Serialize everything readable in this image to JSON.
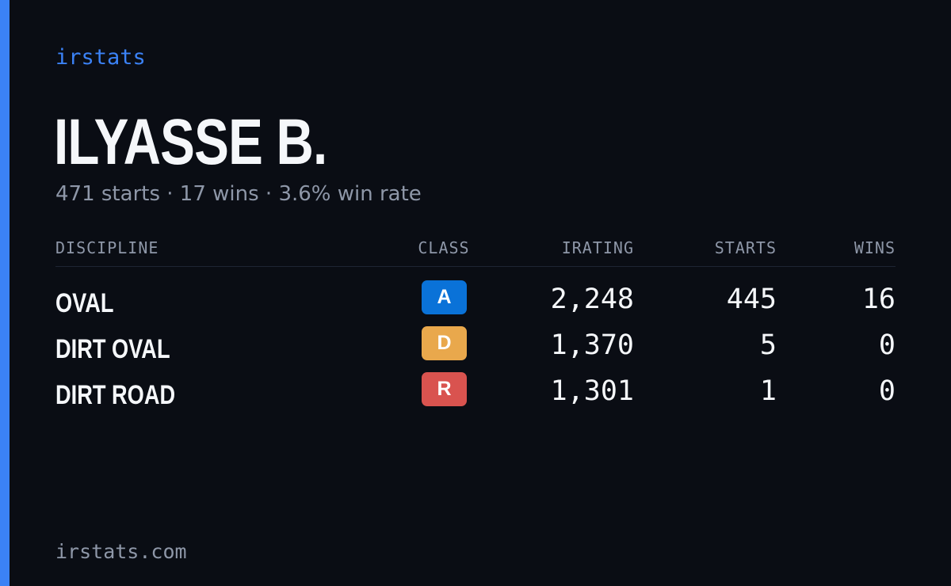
{
  "brand": "irstats",
  "driver": {
    "name": "ILYASSE B.",
    "summary": "471 starts · 17 wins · 3.6% win rate"
  },
  "table": {
    "headers": {
      "discipline": "DISCIPLINE",
      "class": "CLASS",
      "irating": "IRATING",
      "starts": "STARTS",
      "wins": "WINS"
    },
    "rows": [
      {
        "discipline": "OVAL",
        "class": "A",
        "class_color": "#0a72d8",
        "irating": "2,248",
        "starts": "445",
        "wins": "16"
      },
      {
        "discipline": "DIRT OVAL",
        "class": "D",
        "class_color": "#e9a84c",
        "irating": "1,370",
        "starts": "5",
        "wins": "0"
      },
      {
        "discipline": "DIRT ROAD",
        "class": "R",
        "class_color": "#d9534f",
        "irating": "1,301",
        "starts": "1",
        "wins": "0"
      }
    ]
  },
  "footer": "irstats.com",
  "colors": {
    "accent": "#3b82f6",
    "background": "#0a0d14"
  }
}
